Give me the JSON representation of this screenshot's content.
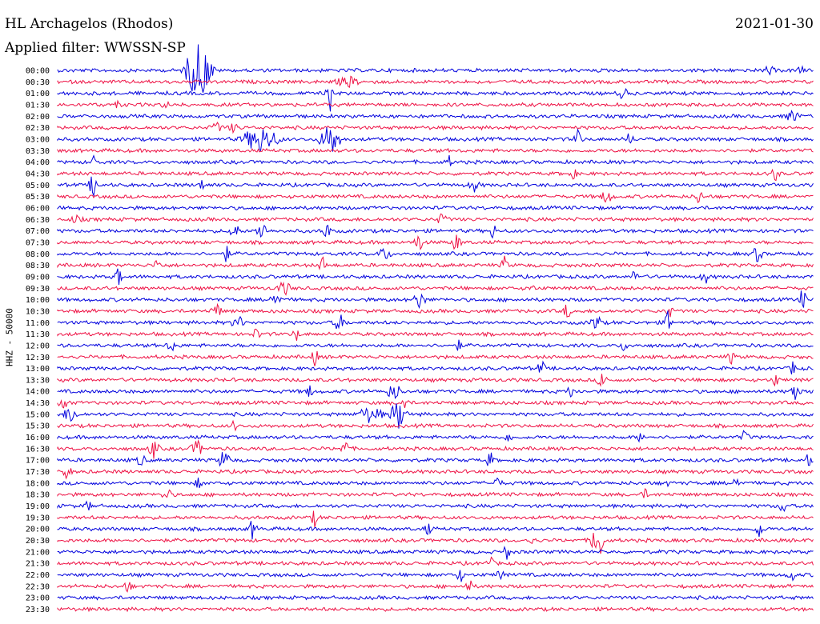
{
  "header": {
    "title": "HL Archagelos (Rhodos)",
    "date": "2021-01-30",
    "filter": "Applied filter: WWSSN-SP"
  },
  "chart_data": {
    "type": "line",
    "title": "HL Archagelos (Rhodos)",
    "subtitle": "Applied filter: WWSSN-SP",
    "date": "2021-01-30",
    "ylabel": "HHZ - 50000",
    "xlabel": "",
    "trace_colors": [
      "#0000dd",
      "#ee1144"
    ],
    "grid": false,
    "categories": [
      "00:00",
      "00:30",
      "01:00",
      "01:30",
      "02:00",
      "02:30",
      "03:00",
      "03:30",
      "04:00",
      "04:30",
      "05:00",
      "05:30",
      "06:00",
      "06:30",
      "07:00",
      "07:30",
      "08:00",
      "08:30",
      "09:00",
      "09:30",
      "10:00",
      "10:30",
      "11:00",
      "11:30",
      "12:00",
      "12:30",
      "13:00",
      "13:30",
      "14:00",
      "14:30",
      "15:00",
      "15:30",
      "16:00",
      "16:30",
      "17:00",
      "17:30",
      "18:00",
      "18:30",
      "19:00",
      "19:30",
      "20:00",
      "20:30",
      "21:00",
      "21:30",
      "22:00",
      "22:30",
      "23:00",
      "23:30"
    ]
  }
}
